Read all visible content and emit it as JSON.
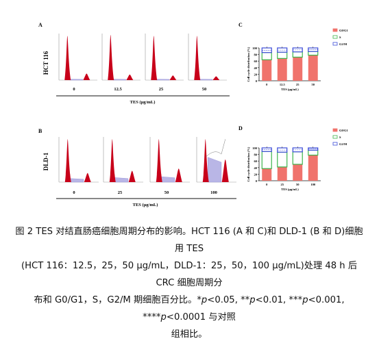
{
  "panels": {
    "A": {
      "letter": "A",
      "cell_line": "HCT 116",
      "doses": [
        "0",
        "12.5",
        "25",
        "50"
      ],
      "xlabel": "TES (μg/mL)"
    },
    "B": {
      "letter": "B",
      "cell_line": "DLD-1",
      "doses": [
        "0",
        "25",
        "50",
        "100"
      ],
      "xlabel": "TES (μg/mL)"
    },
    "C": {
      "letter": "C"
    },
    "D": {
      "letter": "D"
    }
  },
  "colors": {
    "g0g1": "#f0736c",
    "s": "#3cb44b",
    "g2m": "#3a4bd8",
    "histogram_fill": "#c8001a",
    "s_fill": "#b9b6e6"
  },
  "chart_data": [
    {
      "panel": "C",
      "type": "bar",
      "stacked": true,
      "categories": [
        "0",
        "12.5",
        "25",
        "50"
      ],
      "series": [
        {
          "name": "G0/G1",
          "values": [
            64,
            68,
            72,
            78
          ]
        },
        {
          "name": "S",
          "values": [
            22,
            19,
            16,
            11
          ]
        },
        {
          "name": "G2/M",
          "values": [
            14,
            13,
            12,
            11
          ]
        }
      ],
      "ylabel": "Cell cycle distribution (%)",
      "xlabel": "TES (μg/mL)",
      "ylim": [
        0,
        100
      ],
      "yticks": [
        "0",
        "20",
        "40",
        "60",
        "80",
        "100"
      ],
      "legend_position": "top-right"
    },
    {
      "panel": "D",
      "type": "bar",
      "stacked": true,
      "categories": [
        "0",
        "25",
        "50",
        "100"
      ],
      "series": [
        {
          "name": "G0/G1",
          "values": [
            37,
            42,
            50,
            78
          ]
        },
        {
          "name": "S",
          "values": [
            52,
            45,
            38,
            15
          ]
        },
        {
          "name": "G2/M",
          "values": [
            11,
            13,
            12,
            7
          ]
        }
      ],
      "ylabel": "Cell cycle distribution (%)",
      "xlabel": "TES (μg/mL)",
      "ylim": [
        0,
        100
      ],
      "yticks": [
        "0",
        "20",
        "40",
        "60",
        "80",
        "100"
      ],
      "legend_position": "top-right"
    }
  ],
  "caption": {
    "line1": "图 2 TES 对结直肠癌细胞周期分布的影响。HCT 116 (A 和 C)和 DLD-1 (B 和 D)细胞用 TES",
    "line2": "(HCT 116：12.5，25，50 μg/mL，DLD-1：25，50，100 μg/mL)处理 48 h 后 CRC 细胞周期分",
    "line3_prefix": "布和 G0/G1，S，G2/M 期细胞百分比。",
    "sig1_p": "p",
    "sig1": "<0.05, **",
    "sig2_p": "p",
    "sig2": "<0.01, ***",
    "sig3_p": "p",
    "sig3": "<0.001, ****",
    "sig4_p": "p",
    "sig4": "<0.0001 与对照",
    "line4": "组相比。",
    "sig_star": "*"
  }
}
